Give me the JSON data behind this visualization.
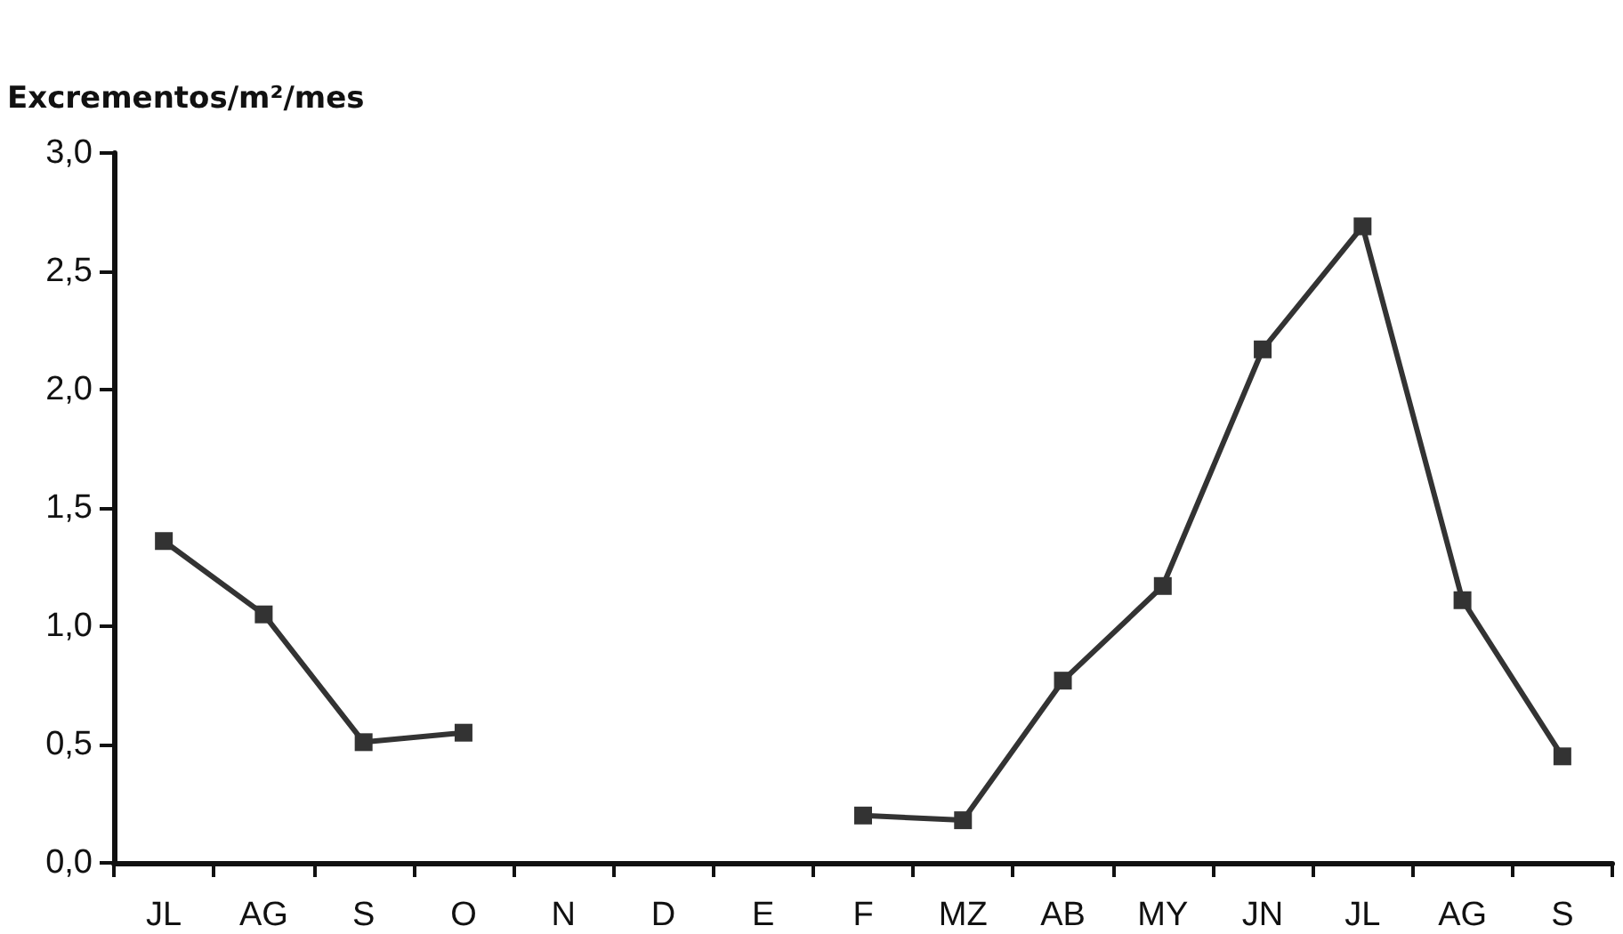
{
  "chart_data": {
    "type": "line",
    "ylabel": "Excrementos/m²/mes",
    "categories": [
      "JL",
      "AG",
      "S",
      "O",
      "N",
      "D",
      "E",
      "F",
      "MZ",
      "AB",
      "MY",
      "JN",
      "JL",
      "AG",
      "S"
    ],
    "series": [
      {
        "color": "#333333",
        "values": [
          1.36,
          1.05,
          0.51,
          0.55,
          null,
          null,
          null,
          0.2,
          0.18,
          0.77,
          1.17,
          2.17,
          2.69,
          1.11,
          0.45
        ]
      }
    ],
    "ylim": [
      0,
      3
    ],
    "yticks": [
      {
        "value": 0,
        "label": "0,0"
      },
      {
        "value": 0.5,
        "label": "0,5"
      },
      {
        "value": 1,
        "label": "1,0"
      },
      {
        "value": 1.5,
        "label": "1,5"
      },
      {
        "value": 2,
        "label": "2,0"
      },
      {
        "value": 2.5,
        "label": "2,5"
      },
      {
        "value": 3,
        "label": "3,0"
      }
    ],
    "marker": "square",
    "line_style": "solid"
  }
}
